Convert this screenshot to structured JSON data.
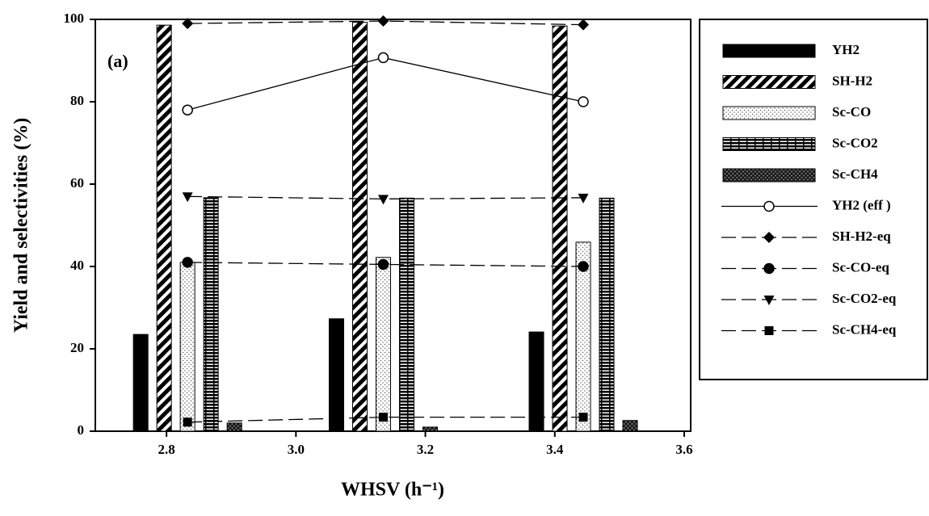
{
  "chart_data": {
    "type": "bar-line",
    "annotation": "(a)",
    "x_label": "WHSV (h⁻¹)",
    "y_label": "Yield and selectivities (%)",
    "x": [
      2.8325,
      3.135,
      3.444
    ],
    "xlim": [
      2.69,
      3.61
    ],
    "xticks": [
      {
        "value": 2.8,
        "label": "2.8"
      },
      {
        "value": 3.0,
        "label": "3.0"
      },
      {
        "value": 3.2,
        "label": "3.2"
      },
      {
        "value": 3.4,
        "label": "3.4"
      },
      {
        "value": 3.6,
        "label": "3.6"
      }
    ],
    "ylim": [
      0,
      100
    ],
    "yticks": [
      0,
      20,
      40,
      60,
      80,
      100
    ],
    "series": [
      {
        "name": "YH2",
        "kind": "bar",
        "pattern": "solid",
        "color": "#000000",
        "values": [
          23.5,
          27.3,
          24.1
        ]
      },
      {
        "name": "SH-H2",
        "kind": "bar",
        "pattern": "diagonal",
        "color": "#000000",
        "values": [
          98.6,
          99.3,
          98.4
        ]
      },
      {
        "name": "Sc-CO",
        "kind": "bar",
        "pattern": "dots",
        "color": "#000000",
        "values": [
          41,
          42.2,
          45.9
        ]
      },
      {
        "name": "Sc-CO2",
        "kind": "bar",
        "pattern": "bricks",
        "color": "#000000",
        "values": [
          56.7,
          56.6,
          56.6
        ]
      },
      {
        "name": "Sc-CH4",
        "kind": "bar",
        "pattern": "cross",
        "color": "#000000",
        "values": [
          2,
          1,
          2.6
        ]
      },
      {
        "name": "YH2 (eff )",
        "kind": "line",
        "marker": "circle-open",
        "dashed": false,
        "color": "#000000",
        "values": [
          78,
          90.7,
          80
        ]
      },
      {
        "name": "SH-H2-eq",
        "kind": "line",
        "marker": "diamond",
        "dashed": true,
        "color": "#000000",
        "values": [
          99,
          99.6,
          98.7
        ]
      },
      {
        "name": "Sc-CO-eq",
        "kind": "line",
        "marker": "circle",
        "dashed": true,
        "color": "#000000",
        "values": [
          41,
          40.5,
          40
        ]
      },
      {
        "name": "Sc-CO2-eq",
        "kind": "line",
        "marker": "triangle-down",
        "dashed": true,
        "color": "#000000",
        "values": [
          57,
          56.4,
          56.7
        ]
      },
      {
        "name": "Sc-CH4-eq",
        "kind": "line",
        "marker": "square",
        "dashed": true,
        "color": "#000000",
        "values": [
          2.2,
          3.4,
          3.4
        ]
      }
    ]
  }
}
